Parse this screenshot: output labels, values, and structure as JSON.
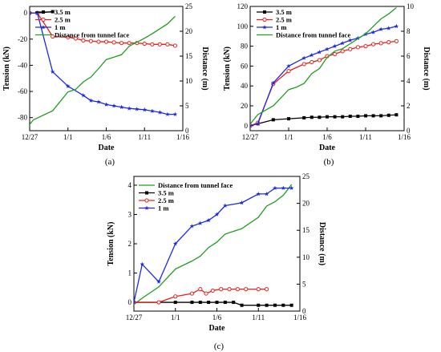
{
  "figure": {
    "panel_labels": [
      "(a)",
      "(b)",
      "(c)"
    ]
  },
  "chart_data": [
    {
      "type": "line",
      "panel": "(a)",
      "xlabel": "Date",
      "ylabel": "Tension (kN)",
      "y2label": "Distance (m)",
      "x_tick_labels": [
        "12/27",
        "1/1",
        "1/6",
        "1/11",
        "1/16"
      ],
      "x_tick_days": [
        0,
        5,
        10,
        15,
        20
      ],
      "xlim": [
        0,
        20
      ],
      "ylim": [
        -90,
        5
      ],
      "y_ticks": [
        0,
        -20,
        -40,
        -60,
        -80
      ],
      "y2lim": [
        0,
        25
      ],
      "y2_ticks": [
        0,
        5,
        10,
        15,
        20,
        25
      ],
      "legend_position": "top-left",
      "grid": false,
      "series": [
        {
          "name": "3.5 m",
          "axis": "left",
          "color": "#000000",
          "marker": "square",
          "x": [
            0,
            1,
            3
          ],
          "values": [
            0,
            0,
            1
          ]
        },
        {
          "name": "2.5 m",
          "axis": "left",
          "color": "#e8201c",
          "marker": "circle",
          "x": [
            0,
            1,
            3,
            5,
            6,
            7,
            8,
            9,
            10,
            11,
            12,
            13,
            14,
            15,
            16,
            17,
            18,
            19
          ],
          "values": [
            0,
            0,
            -18,
            -18.5,
            -19.5,
            -21,
            -21.5,
            -22,
            -22,
            -22.5,
            -23,
            -23,
            -23,
            -23.5,
            -24,
            -24,
            -24,
            -25
          ]
        },
        {
          "name": "1 m",
          "axis": "left",
          "color": "#1c2ae8",
          "marker": "star",
          "x": [
            0,
            1,
            3,
            5,
            7,
            8,
            9,
            10,
            11,
            12,
            13,
            14,
            15,
            16,
            17,
            18,
            19
          ],
          "values": [
            0,
            0,
            -45,
            -56,
            -63,
            -67,
            -68,
            -70,
            -71,
            -72,
            -73,
            -73.5,
            -74,
            -75,
            -76,
            -77.5,
            -77.5
          ]
        },
        {
          "name": "Distance from tunnel face",
          "axis": "right",
          "color": "#1f9e1f",
          "marker": "none",
          "x": [
            -0.4,
            0.5,
            3,
            5,
            6,
            7,
            8,
            9,
            10,
            11,
            12,
            13,
            14,
            15,
            16,
            17,
            18,
            19
          ],
          "values": [
            0.5,
            2.2,
            4,
            7.8,
            8.3,
            9.8,
            10.8,
            12.5,
            14.3,
            14.8,
            15.3,
            17,
            17.8,
            18.6,
            19.5,
            20.5,
            21.5,
            23
          ]
        }
      ]
    },
    {
      "type": "line",
      "panel": "(b)",
      "xlabel": "Date",
      "ylabel": "Tension (kN)",
      "y2label": "Distance (m)",
      "x_tick_labels": [
        "12/27",
        "1/1",
        "1/6",
        "1/11",
        "1/16"
      ],
      "x_tick_days": [
        0,
        5,
        10,
        15,
        20
      ],
      "xlim": [
        0,
        20
      ],
      "ylim": [
        -5,
        120
      ],
      "y_ticks": [
        0,
        20,
        40,
        60,
        80,
        100,
        120
      ],
      "y2lim": [
        0,
        10
      ],
      "y2_ticks": [
        0,
        2,
        4,
        6,
        8,
        10
      ],
      "legend_position": "top-left",
      "grid": false,
      "series": [
        {
          "name": "3.5 m",
          "axis": "left",
          "color": "#000000",
          "marker": "square",
          "x": [
            0,
            1,
            3,
            5,
            7,
            8,
            9,
            10,
            11,
            12,
            13,
            14,
            15,
            16,
            17,
            18,
            19
          ],
          "values": [
            0,
            2,
            6,
            7,
            8,
            8.5,
            8.5,
            9,
            9,
            9,
            9.5,
            9.5,
            10,
            10,
            10,
            10.5,
            11
          ]
        },
        {
          "name": "2.5 m",
          "axis": "left",
          "color": "#e8201c",
          "marker": "circle",
          "x": [
            0,
            1,
            3,
            5,
            7,
            8,
            9,
            10,
            11,
            12,
            13,
            14,
            15,
            16,
            17,
            18,
            19
          ],
          "values": [
            0,
            3,
            42,
            55,
            62,
            64,
            66,
            70,
            72,
            75,
            77,
            79,
            80,
            82,
            83,
            84,
            85
          ]
        },
        {
          "name": "1 m",
          "axis": "left",
          "color": "#1c2ae8",
          "marker": "star",
          "x": [
            0,
            1,
            3,
            5,
            7,
            8,
            9,
            10,
            11,
            12,
            13,
            14,
            15,
            16,
            17,
            18,
            19
          ],
          "values": [
            0,
            2,
            43,
            60,
            68,
            71,
            74,
            77,
            80,
            83,
            86,
            88,
            92,
            94,
            97,
            98,
            100
          ]
        },
        {
          "name": "Distance from tunnel face",
          "axis": "right",
          "color": "#1f9e1f",
          "marker": "none",
          "x": [
            -0.3,
            1,
            3,
            5,
            6,
            7,
            8,
            9,
            10,
            11,
            12,
            13,
            14,
            15,
            16,
            17,
            18,
            19
          ],
          "values": [
            0.3,
            1.3,
            2,
            3.3,
            3.5,
            3.8,
            4.6,
            5,
            5.9,
            6.4,
            6.6,
            7,
            7.4,
            7.8,
            8.4,
            9,
            9.4,
            9.9
          ]
        }
      ]
    },
    {
      "type": "line",
      "panel": "(c)",
      "xlabel": "Date",
      "ylabel": "Tension (kN)",
      "y2label": "Distance (m)",
      "x_tick_labels": [
        "12/27",
        "1/1",
        "1/6",
        "1/11",
        "1/16"
      ],
      "x_tick_days": [
        0,
        5,
        10,
        15,
        20
      ],
      "xlim": [
        0,
        20
      ],
      "ylim": [
        -0.3,
        4.3
      ],
      "y_ticks": [
        0,
        1,
        2,
        3,
        4
      ],
      "y2lim": [
        0,
        25
      ],
      "y2_ticks": [
        0,
        5,
        10,
        15,
        20,
        25
      ],
      "legend_position": "top-left",
      "grid": false,
      "series": [
        {
          "name": "Distance from tunnel face",
          "axis": "right",
          "color": "#1f9e1f",
          "marker": "none",
          "x": [
            -0.4,
            1,
            3,
            5,
            7,
            8,
            9,
            10,
            11,
            13,
            15,
            16,
            17,
            18,
            19
          ],
          "values": [
            0.8,
            2.4,
            4.5,
            7.8,
            9.3,
            10.2,
            11.8,
            12.8,
            14.3,
            15.3,
            17.4,
            19.5,
            20.3,
            21.5,
            23.5
          ]
        },
        {
          "name": "3.5 m",
          "axis": "left",
          "color": "#000000",
          "marker": "square",
          "x": [
            0,
            3,
            5,
            7,
            8,
            9,
            10,
            11,
            12,
            13,
            15,
            16,
            17,
            18,
            19
          ],
          "values": [
            0,
            0,
            0,
            0,
            0,
            0,
            0,
            0,
            0,
            -0.1,
            -0.1,
            -0.1,
            -0.1,
            -0.1,
            -0.1
          ]
        },
        {
          "name": "2.5 m",
          "axis": "left",
          "color": "#e8201c",
          "marker": "circle",
          "x": [
            0,
            3,
            5,
            7,
            8,
            8.7,
            9.5,
            10.5,
            11.5,
            12.5,
            13.5,
            15,
            16
          ],
          "values": [
            0,
            0,
            0.2,
            0.3,
            0.45,
            0.3,
            0.4,
            0.45,
            0.45,
            0.45,
            0.45,
            0.45,
            0.45
          ]
        },
        {
          "name": "1 m",
          "axis": "left",
          "color": "#1c2ae8",
          "marker": "star",
          "x": [
            0,
            1,
            3,
            5,
            7,
            8,
            9,
            10,
            11,
            13,
            15,
            16,
            17,
            18,
            19
          ],
          "values": [
            0,
            1.3,
            0.7,
            2.0,
            2.6,
            2.7,
            2.8,
            3.0,
            3.3,
            3.4,
            3.7,
            3.7,
            3.9,
            3.9,
            3.9
          ]
        }
      ]
    }
  ]
}
